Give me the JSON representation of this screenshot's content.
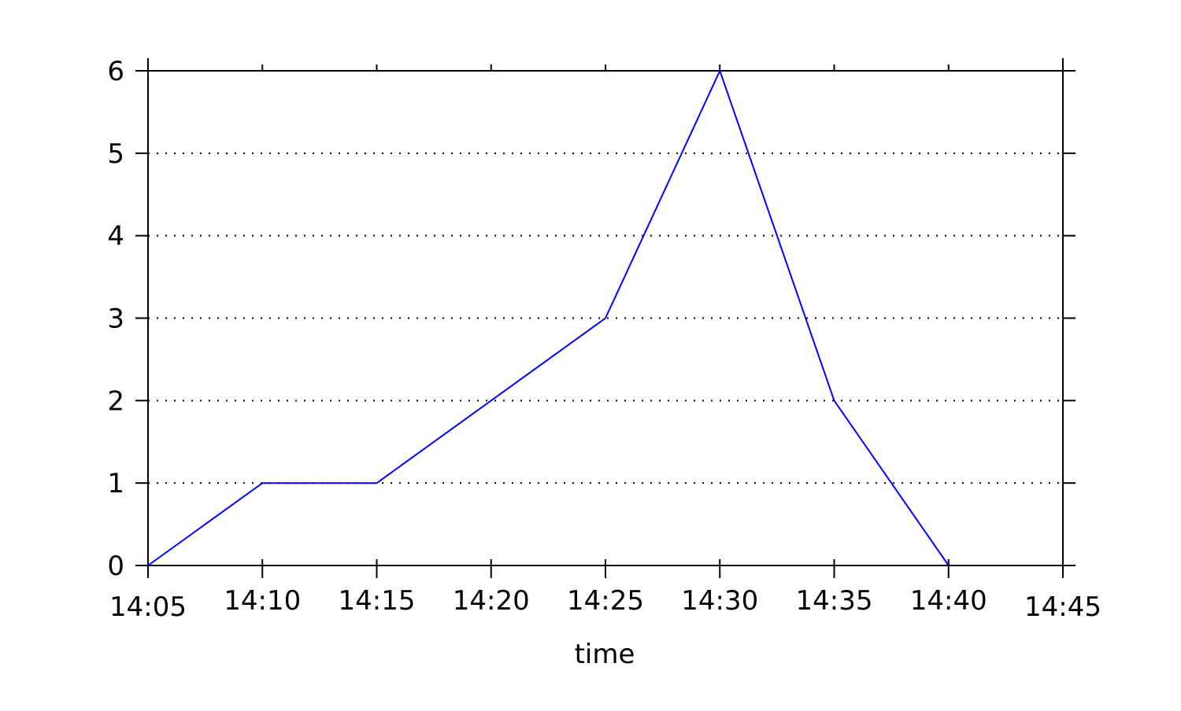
{
  "chart_data": {
    "type": "line",
    "title": "",
    "xlabel": "time",
    "ylabel": "",
    "x": [
      "14:05",
      "14:10",
      "14:15",
      "14:20",
      "14:25",
      "14:30",
      "14:35",
      "14:40"
    ],
    "series": [
      {
        "values": [
          0,
          1,
          1,
          2,
          3,
          6,
          2,
          0
        ],
        "color": "#0000ff"
      }
    ],
    "xticks": [
      "14:05",
      "14:10",
      "14:15",
      "14:20",
      "14:25",
      "14:30",
      "14:35",
      "14:40",
      "14:45"
    ],
    "xlim": [
      "14:05",
      "14:45"
    ],
    "yticks": [
      0,
      1,
      2,
      3,
      4,
      5,
      6
    ],
    "ylim": [
      0,
      6
    ],
    "grid": {
      "y": true,
      "x": false,
      "style": "dotted"
    },
    "legend": "none"
  }
}
